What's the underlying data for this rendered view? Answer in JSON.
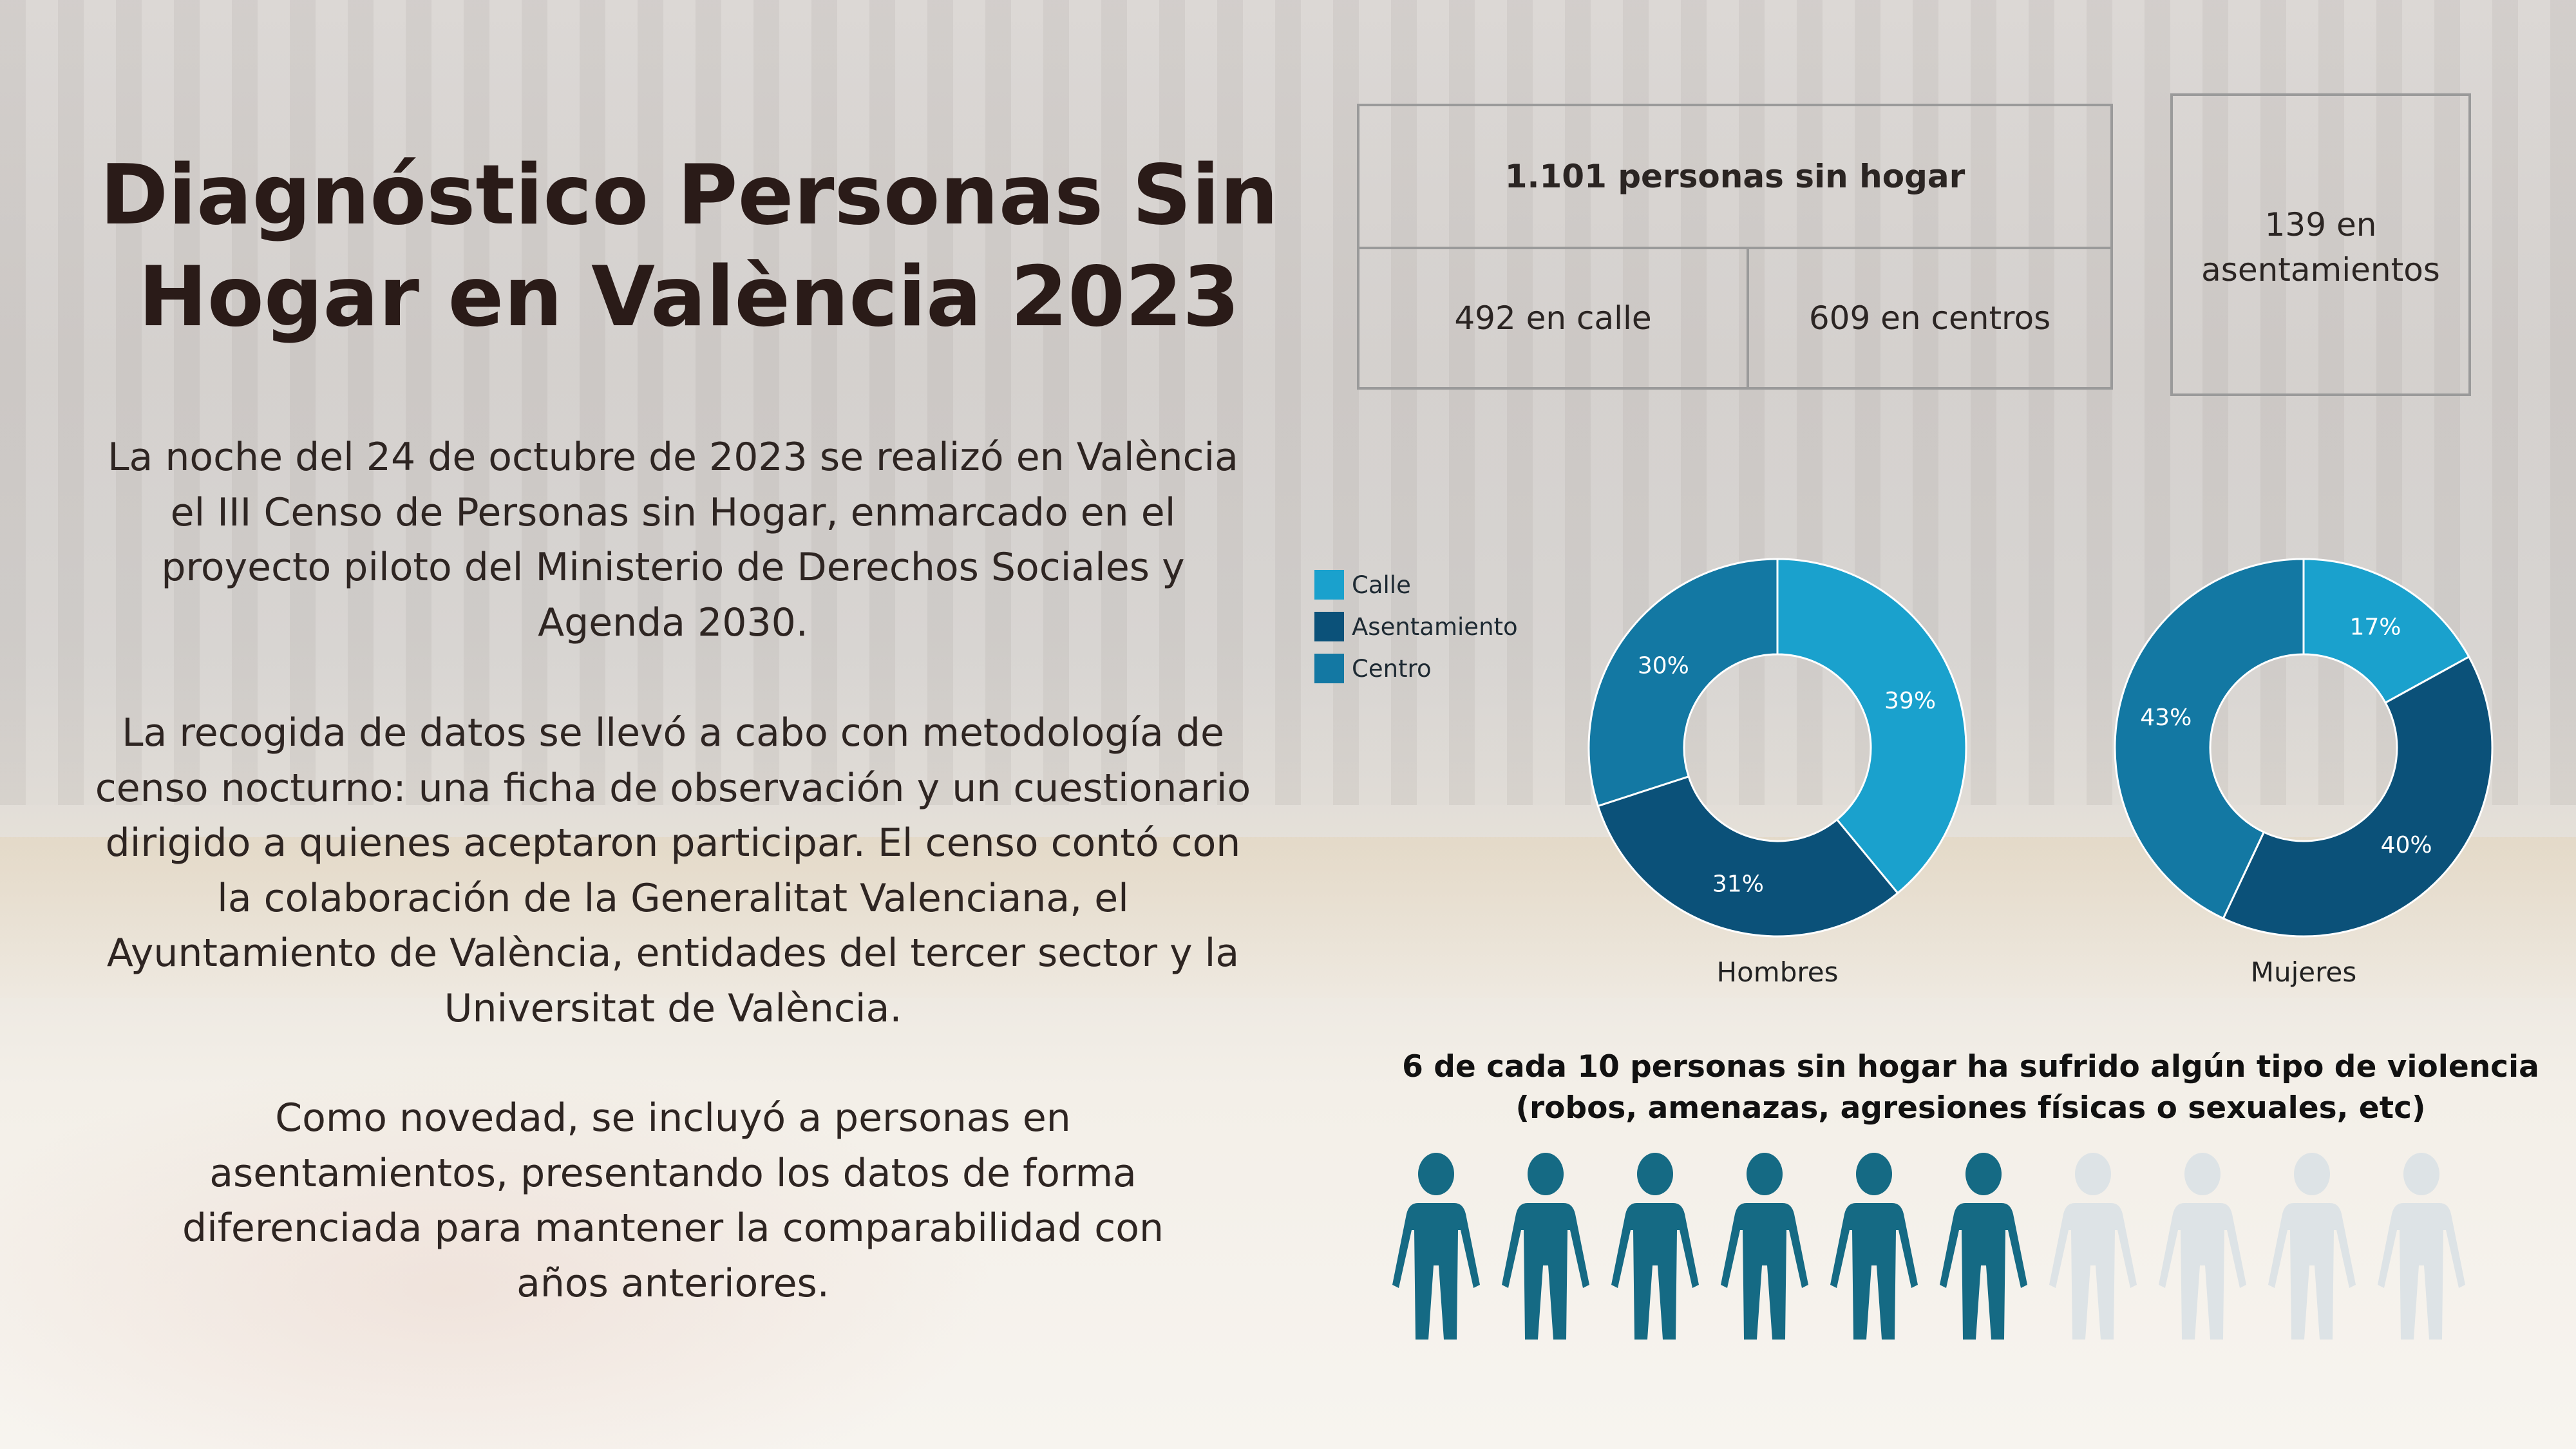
{
  "title": "Diagnóstico Personas Sin Hogar en València 2023",
  "paragraphs": [
    "La noche del 24 de octubre de 2023 se realizó en València el III Censo de Personas sin Hogar, enmarcado en el proyecto piloto del Ministerio de Derechos Sociales y Agenda 2030.",
    "La recogida de datos se llevó a cabo con metodología de censo nocturno: una ficha de observación y un cuestionario dirigido a quienes aceptaron participar. El censo contó con la colaboración de la Generalitat Valenciana, el Ayuntamiento de València, entidades del tercer sector y la Universitat de València.",
    "Como novedad, se incluyó a personas en asentamientos, presentando los datos de forma diferenciada para mantener la comparabilidad con años anteriores."
  ],
  "stats": {
    "total": "1.101 personas sin hogar",
    "calle": "492 en calle",
    "centros": "609 en centros",
    "asentamientos": "139 en asentamientos"
  },
  "chart_data": {
    "type": "pie",
    "donut": true,
    "legend": [
      "Calle",
      "Asentamiento",
      "Centro"
    ],
    "colors": {
      "Calle": "#1aa1cd",
      "Asentamiento": "#0b5179",
      "Centro": "#1378a3"
    },
    "legend_position": "left",
    "charts": [
      {
        "label": "Hombres",
        "slices": [
          {
            "name": "Calle",
            "value": 39
          },
          {
            "name": "Asentamiento",
            "value": 31
          },
          {
            "name": "Centro",
            "value": 30
          }
        ]
      },
      {
        "label": "Mujeres",
        "slices": [
          {
            "name": "Calle",
            "value": 17
          },
          {
            "name": "Asentamiento",
            "value": 40
          },
          {
            "name": "Centro",
            "value": 43
          }
        ]
      }
    ]
  },
  "violence": {
    "text": "6 de cada 10 personas sin hogar ha sufrido algún tipo de violencia (robos, amenazas, agresiones físicas o sexuales, etc)",
    "affected": 6,
    "total": 10,
    "color_affected": "#156a84",
    "color_other": "#dde3e6"
  }
}
